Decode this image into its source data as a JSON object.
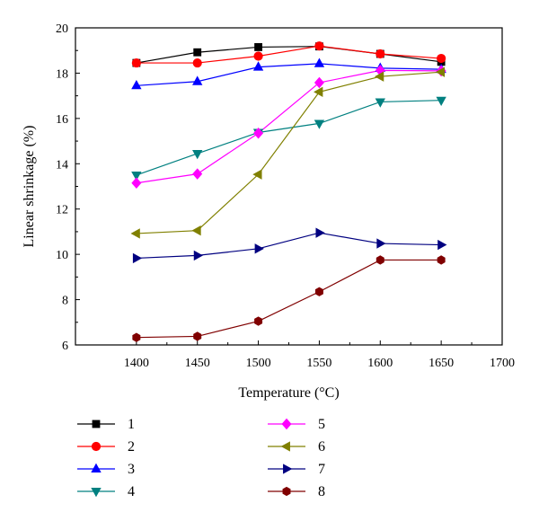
{
  "chart_data": {
    "type": "line",
    "xlabel": "Temperature (°C)",
    "ylabel": "Linear shrinkage (%)",
    "xlim": [
      1350,
      1700
    ],
    "ylim": [
      6,
      20
    ],
    "xticks": [
      1400,
      1450,
      1500,
      1550,
      1600,
      1650,
      1700
    ],
    "yticks": [
      6,
      8,
      10,
      12,
      14,
      16,
      18,
      20
    ],
    "x": [
      1400,
      1450,
      1500,
      1550,
      1600,
      1650
    ],
    "grid": false,
    "legend_position": "bottom",
    "series": [
      {
        "name": "1",
        "color": "#000000",
        "marker": "square",
        "values": [
          18.45,
          18.92,
          19.15,
          19.18,
          18.85,
          18.5
        ]
      },
      {
        "name": "2",
        "color": "#ff0000",
        "marker": "circle",
        "values": [
          18.45,
          18.45,
          18.75,
          19.2,
          18.85,
          18.65
        ]
      },
      {
        "name": "3",
        "color": "#0000ff",
        "marker": "triangle-up",
        "values": [
          17.45,
          17.63,
          18.27,
          18.42,
          18.22,
          18.17
        ]
      },
      {
        "name": "4",
        "color": "#008080",
        "marker": "triangle-down",
        "values": [
          13.5,
          14.45,
          15.38,
          15.78,
          16.73,
          16.8
        ]
      },
      {
        "name": "5",
        "color": "#ff00ff",
        "marker": "diamond",
        "values": [
          13.15,
          13.55,
          15.35,
          17.58,
          18.12,
          18.1
        ]
      },
      {
        "name": "6",
        "color": "#808000",
        "marker": "triangle-left",
        "values": [
          10.92,
          11.05,
          13.53,
          17.17,
          17.85,
          18.05
        ]
      },
      {
        "name": "7",
        "color": "#000080",
        "marker": "triangle-right",
        "values": [
          9.83,
          9.95,
          10.25,
          10.95,
          10.48,
          10.42
        ]
      },
      {
        "name": "8",
        "color": "#800000",
        "marker": "hexagon",
        "values": [
          6.33,
          6.38,
          7.05,
          8.35,
          9.75,
          9.75
        ]
      }
    ]
  }
}
